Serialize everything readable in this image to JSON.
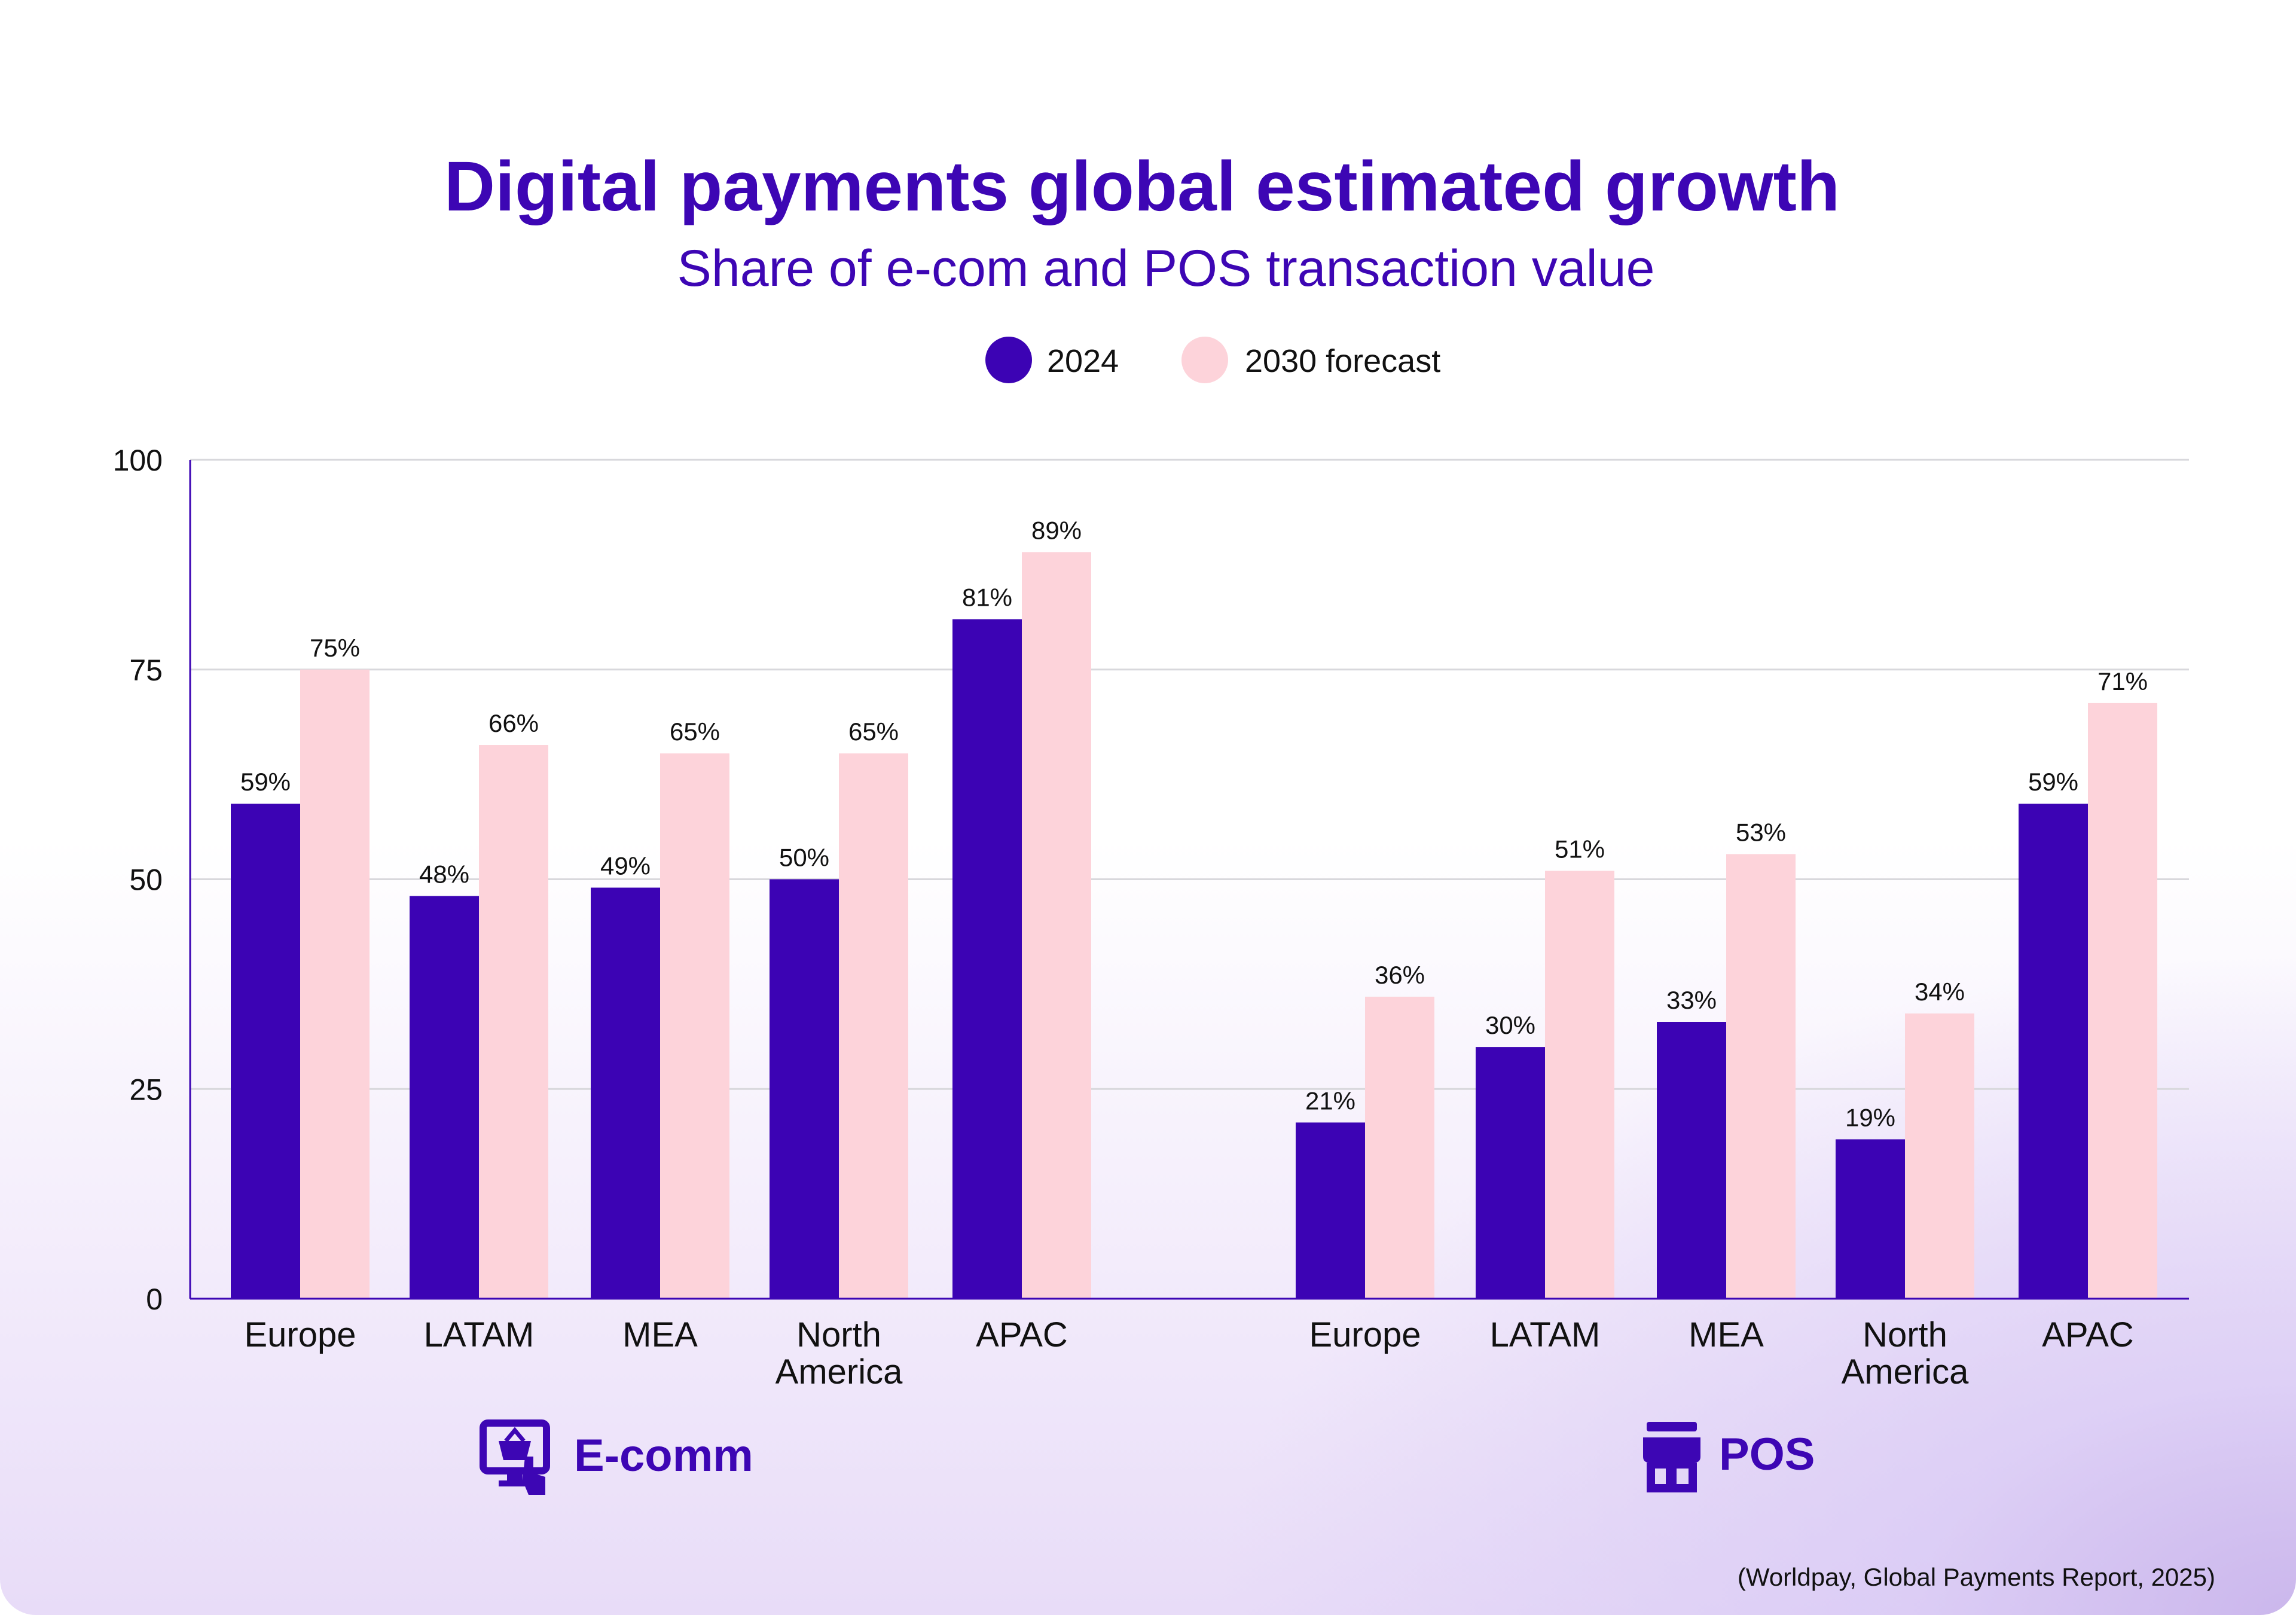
{
  "chart_data": {
    "type": "bar",
    "title": "Digital payments global estimated growth",
    "subtitle": "Share of e-com and POS transaction value",
    "ylim": [
      0,
      100
    ],
    "yticks": [
      0,
      25,
      50,
      75,
      100
    ],
    "grid": true,
    "legend_placement": "top-center",
    "colors": {
      "2024": "#3c03b4",
      "2030 forecast": "#fdd3da",
      "accent": "#3d06b4"
    },
    "legend": [
      "2024",
      "2030 forecast"
    ],
    "groups": [
      {
        "name": "E-comm",
        "icon": "shopping-basket-monitor-icon",
        "categories": [
          "Europe",
          "LATAM",
          "MEA",
          "North America",
          "APAC"
        ],
        "series": [
          {
            "name": "2024",
            "values": [
              59,
              48,
              49,
              50,
              81
            ],
            "labels": [
              "59%",
              "48%",
              "49%",
              "50%",
              "81%"
            ]
          },
          {
            "name": "2030 forecast",
            "values": [
              75,
              66,
              65,
              65,
              89
            ],
            "labels": [
              "75%",
              "66%",
              "65%",
              "65%",
              "89%"
            ]
          }
        ]
      },
      {
        "name": "POS",
        "icon": "storefront-icon",
        "categories": [
          "Europe",
          "LATAM",
          "MEA",
          "North America",
          "APAC"
        ],
        "series": [
          {
            "name": "2024",
            "values": [
              21,
              30,
              33,
              19,
              59
            ],
            "labels": [
              "21%",
              "30%",
              "33%",
              "19%",
              "59%"
            ]
          },
          {
            "name": "2030 forecast",
            "values": [
              36,
              51,
              53,
              34,
              71
            ],
            "labels": [
              "36%",
              "51%",
              "53%",
              "34%",
              "71%"
            ]
          }
        ]
      }
    ],
    "source": "(Worldpay, Global Payments Report, 2025)"
  }
}
